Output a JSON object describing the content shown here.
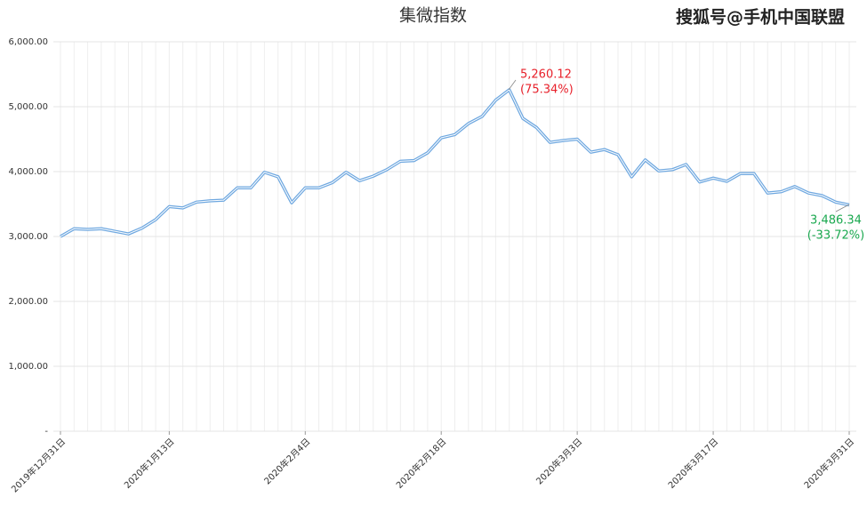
{
  "chart_data": {
    "type": "line",
    "title": "集微指数",
    "source": "搜狐号@手机中国联盟",
    "categories": [
      "2019年12月31日",
      null,
      null,
      null,
      null,
      null,
      null,
      null,
      "2020年1月13日",
      null,
      null,
      null,
      null,
      null,
      null,
      null,
      null,
      null,
      "2020年2月4日",
      null,
      null,
      null,
      null,
      null,
      null,
      null,
      null,
      null,
      "2020年2月18日",
      null,
      null,
      null,
      null,
      null,
      null,
      null,
      null,
      null,
      "2020年3月3日",
      null,
      null,
      null,
      null,
      null,
      null,
      null,
      null,
      null,
      "2020年3月17日",
      null,
      null,
      null,
      null,
      null,
      null,
      null,
      null,
      null,
      "2020年3月31日"
    ],
    "values": [
      3000,
      3120,
      3110,
      3120,
      3080,
      3040,
      3130,
      3260,
      3460,
      3440,
      3530,
      3550,
      3560,
      3750,
      3750,
      3990,
      3920,
      3520,
      3750,
      3750,
      3830,
      3990,
      3860,
      3930,
      4030,
      4160,
      4170,
      4290,
      4520,
      4570,
      4740,
      4850,
      5100,
      5260.12,
      4820,
      4680,
      4450,
      4480,
      4500,
      4300,
      4340,
      4260,
      3920,
      4180,
      4010,
      4030,
      4110,
      3840,
      3900,
      3850,
      3970,
      3970,
      3670,
      3690,
      3770,
      3670,
      3630,
      3530,
      3486.34
    ],
    "color": "#6fa8e0",
    "ylim": [
      0,
      6000
    ],
    "yticks": [
      {
        "value": 0,
        "label": "-"
      },
      {
        "value": 1000,
        "label": "1,000.00"
      },
      {
        "value": 2000,
        "label": "2,000.00"
      },
      {
        "value": 3000,
        "label": "3,000.00"
      },
      {
        "value": 4000,
        "label": "4,000.00"
      },
      {
        "value": 5000,
        "label": "5,000.00"
      },
      {
        "value": 6000,
        "label": "6,000.00"
      }
    ],
    "grid": true,
    "annotations": [
      {
        "lines": [
          "5,260.12",
          "(75.34%)"
        ],
        "color": "#e8202a"
      },
      {
        "lines": [
          "3,486.34",
          "(-33.72%)"
        ],
        "color": "#1aa84f"
      }
    ]
  }
}
